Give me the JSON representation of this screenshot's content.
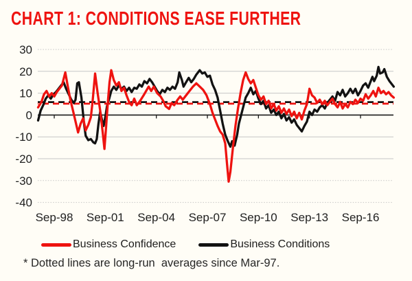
{
  "title": "CHART 1: CONDITIONS EASE FURTHER",
  "footnote": "* Dotted lines are long-run  averages since Mar-97.",
  "colors": {
    "accent_red": "#ee1310",
    "line_black": "#121212",
    "grid": "#c5c5c5",
    "zero_axis": "#1a1a1a",
    "tick_text": "#1f1f1f"
  },
  "chart_data": {
    "type": "line",
    "title": "CHART 1: CONDITIONS EASE FURTHER",
    "xlabel": "",
    "ylabel": "",
    "ylim": [
      -40,
      30
    ],
    "grid": "horizontal",
    "legend_position": "bottom",
    "y_axis": {
      "ticks": [
        30,
        20,
        10,
        0,
        -10,
        -20,
        -30,
        -40
      ],
      "dotted_ticks": [
        30,
        -30,
        -40
      ]
    },
    "x_axis": {
      "ticks": [
        {
          "label": "Sep-98",
          "year": 1998.75
        },
        {
          "label": "Sep-01",
          "year": 2001.75
        },
        {
          "label": "Sep-04",
          "year": 2004.75
        },
        {
          "label": "Sep-07",
          "year": 2007.75
        },
        {
          "label": "Sep-10",
          "year": 2010.75
        },
        {
          "label": "Sep-13",
          "year": 2013.75
        },
        {
          "label": "Sep-16",
          "year": 2016.75
        }
      ]
    },
    "avg_lines": [
      {
        "name": "Business Conditions long-run average",
        "value": 5.9,
        "color": "black",
        "dashoffset": 0
      },
      {
        "name": "Business Confidence long-run average",
        "value": 5.2,
        "color": "red",
        "dashoffset": -7
      }
    ],
    "series": [
      {
        "name": "Business Confidence",
        "color": "red",
        "points": [
          [
            1997.8,
            3.5
          ],
          [
            1998.0,
            6
          ],
          [
            1998.15,
            9.5
          ],
          [
            1998.3,
            11
          ],
          [
            1998.45,
            8.5
          ],
          [
            1998.6,
            10
          ],
          [
            1998.75,
            8.5
          ],
          [
            1998.9,
            10.5
          ],
          [
            1999.05,
            12
          ],
          [
            1999.2,
            13.5
          ],
          [
            1999.4,
            19.5
          ],
          [
            1999.55,
            13
          ],
          [
            1999.7,
            7
          ],
          [
            1999.85,
            2
          ],
          [
            2000.0,
            -3
          ],
          [
            2000.15,
            -8
          ],
          [
            2000.3,
            -4
          ],
          [
            2000.45,
            -1.5
          ],
          [
            2000.6,
            -7
          ],
          [
            2000.75,
            -4.5
          ],
          [
            2000.9,
            -1
          ],
          [
            2001.0,
            6
          ],
          [
            2001.15,
            19
          ],
          [
            2001.3,
            10
          ],
          [
            2001.45,
            2
          ],
          [
            2001.6,
            -8
          ],
          [
            2001.7,
            -15.5
          ],
          [
            2001.8,
            -5
          ],
          [
            2001.9,
            6
          ],
          [
            2002.0,
            15
          ],
          [
            2002.1,
            20.5
          ],
          [
            2002.25,
            16
          ],
          [
            2002.4,
            13.5
          ],
          [
            2002.55,
            15
          ],
          [
            2002.7,
            11
          ],
          [
            2002.85,
            12.5
          ],
          [
            2003.0,
            9
          ],
          [
            2003.15,
            6
          ],
          [
            2003.3,
            4.5
          ],
          [
            2003.45,
            7.5
          ],
          [
            2003.6,
            4.5
          ],
          [
            2003.8,
            6.5
          ],
          [
            2004.0,
            9
          ],
          [
            2004.15,
            11
          ],
          [
            2004.3,
            13
          ],
          [
            2004.45,
            11
          ],
          [
            2004.6,
            13
          ],
          [
            2004.8,
            10
          ],
          [
            2005.0,
            8.5
          ],
          [
            2005.15,
            6.5
          ],
          [
            2005.3,
            4
          ],
          [
            2005.5,
            2.8
          ],
          [
            2005.65,
            5.5
          ],
          [
            2005.8,
            4.5
          ],
          [
            2006.0,
            7
          ],
          [
            2006.15,
            8.5
          ],
          [
            2006.3,
            7
          ],
          [
            2006.5,
            9
          ],
          [
            2006.7,
            11
          ],
          [
            2006.9,
            13
          ],
          [
            2007.1,
            14.5
          ],
          [
            2007.3,
            13
          ],
          [
            2007.5,
            11.5
          ],
          [
            2007.7,
            9
          ],
          [
            2007.9,
            5
          ],
          [
            2008.05,
            1
          ],
          [
            2008.2,
            -2
          ],
          [
            2008.35,
            -5
          ],
          [
            2008.5,
            -7.5
          ],
          [
            2008.65,
            -9
          ],
          [
            2008.8,
            -13
          ],
          [
            2008.9,
            -22
          ],
          [
            2009.0,
            -30.5
          ],
          [
            2009.1,
            -26
          ],
          [
            2009.25,
            -15
          ],
          [
            2009.4,
            -5
          ],
          [
            2009.55,
            3
          ],
          [
            2009.7,
            10
          ],
          [
            2009.85,
            16
          ],
          [
            2010.0,
            19.5
          ],
          [
            2010.15,
            16.5
          ],
          [
            2010.3,
            14.5
          ],
          [
            2010.45,
            16
          ],
          [
            2010.6,
            12.5
          ],
          [
            2010.75,
            9
          ],
          [
            2010.9,
            7
          ],
          [
            2011.05,
            8.5
          ],
          [
            2011.2,
            5
          ],
          [
            2011.35,
            6.5
          ],
          [
            2011.5,
            3
          ],
          [
            2011.65,
            5
          ],
          [
            2011.8,
            2
          ],
          [
            2011.95,
            4
          ],
          [
            2012.1,
            1
          ],
          [
            2012.25,
            3
          ],
          [
            2012.4,
            0.5
          ],
          [
            2012.55,
            2.5
          ],
          [
            2012.7,
            -0.5
          ],
          [
            2012.85,
            1.5
          ],
          [
            2013.0,
            -1.5
          ],
          [
            2013.15,
            1
          ],
          [
            2013.3,
            -2
          ],
          [
            2013.45,
            2
          ],
          [
            2013.6,
            5
          ],
          [
            2013.75,
            12
          ],
          [
            2013.9,
            9
          ],
          [
            2014.05,
            8
          ],
          [
            2014.2,
            5.5
          ],
          [
            2014.35,
            7
          ],
          [
            2014.5,
            5
          ],
          [
            2014.65,
            6.5
          ],
          [
            2014.8,
            4.5
          ],
          [
            2014.95,
            6
          ],
          [
            2015.1,
            7.5
          ],
          [
            2015.25,
            5
          ],
          [
            2015.4,
            3.5
          ],
          [
            2015.55,
            6
          ],
          [
            2015.7,
            3
          ],
          [
            2015.85,
            5
          ],
          [
            2016.0,
            3.5
          ],
          [
            2016.15,
            6
          ],
          [
            2016.3,
            5
          ],
          [
            2016.45,
            7
          ],
          [
            2016.6,
            5.5
          ],
          [
            2016.75,
            7.5
          ],
          [
            2016.9,
            6.5
          ],
          [
            2017.05,
            9.5
          ],
          [
            2017.2,
            7.5
          ],
          [
            2017.35,
            9
          ],
          [
            2017.5,
            11
          ],
          [
            2017.65,
            8.5
          ],
          [
            2017.8,
            12.5
          ],
          [
            2017.95,
            10
          ],
          [
            2018.1,
            11
          ],
          [
            2018.25,
            9.5
          ],
          [
            2018.4,
            10.5
          ],
          [
            2018.55,
            9
          ],
          [
            2018.7,
            8
          ]
        ]
      },
      {
        "name": "Business Conditions",
        "color": "black",
        "points": [
          [
            1997.8,
            -2.5
          ],
          [
            1997.95,
            2
          ],
          [
            1998.1,
            4.5
          ],
          [
            1998.25,
            7.5
          ],
          [
            1998.4,
            9
          ],
          [
            1998.55,
            7.5
          ],
          [
            1998.7,
            9.5
          ],
          [
            1998.85,
            10.5
          ],
          [
            1999.0,
            12
          ],
          [
            1999.15,
            13.5
          ],
          [
            1999.3,
            15
          ],
          [
            1999.45,
            12
          ],
          [
            1999.6,
            9.5
          ],
          [
            1999.75,
            7
          ],
          [
            1999.9,
            5.5
          ],
          [
            2000.0,
            7
          ],
          [
            2000.1,
            14.5
          ],
          [
            2000.2,
            15
          ],
          [
            2000.35,
            8
          ],
          [
            2000.5,
            -4
          ],
          [
            2000.6,
            -9.5
          ],
          [
            2000.75,
            -11.5
          ],
          [
            2000.9,
            -11
          ],
          [
            2001.05,
            -12.5
          ],
          [
            2001.15,
            -13
          ],
          [
            2001.25,
            -11
          ],
          [
            2001.35,
            -4
          ],
          [
            2001.45,
            1.5
          ],
          [
            2001.55,
            -2
          ],
          [
            2001.65,
            -5
          ],
          [
            2001.75,
            -1
          ],
          [
            2001.85,
            4
          ],
          [
            2002.0,
            8
          ],
          [
            2002.1,
            11
          ],
          [
            2002.25,
            13
          ],
          [
            2002.4,
            11.5
          ],
          [
            2002.55,
            13.5
          ],
          [
            2002.7,
            12
          ],
          [
            2002.85,
            13
          ],
          [
            2003.0,
            11
          ],
          [
            2003.15,
            12.5
          ],
          [
            2003.3,
            10.5
          ],
          [
            2003.45,
            12.5
          ],
          [
            2003.6,
            12
          ],
          [
            2003.75,
            14
          ],
          [
            2003.9,
            13
          ],
          [
            2004.05,
            15.5
          ],
          [
            2004.2,
            14.5
          ],
          [
            2004.35,
            16.5
          ],
          [
            2004.5,
            15
          ],
          [
            2004.65,
            13
          ],
          [
            2004.8,
            11
          ],
          [
            2004.95,
            9.5
          ],
          [
            2005.1,
            11.5
          ],
          [
            2005.25,
            10.5
          ],
          [
            2005.4,
            12.5
          ],
          [
            2005.55,
            11.5
          ],
          [
            2005.7,
            13
          ],
          [
            2005.85,
            12
          ],
          [
            2006.0,
            15
          ],
          [
            2006.1,
            19.5
          ],
          [
            2006.25,
            16
          ],
          [
            2006.35,
            13
          ],
          [
            2006.5,
            15
          ],
          [
            2006.65,
            17
          ],
          [
            2006.8,
            15
          ],
          [
            2006.95,
            16.5
          ],
          [
            2007.1,
            18.5
          ],
          [
            2007.3,
            20.5
          ],
          [
            2007.45,
            19
          ],
          [
            2007.6,
            19.5
          ],
          [
            2007.75,
            17.5
          ],
          [
            2007.9,
            18
          ],
          [
            2008.05,
            14
          ],
          [
            2008.2,
            11.5
          ],
          [
            2008.35,
            8
          ],
          [
            2008.5,
            2
          ],
          [
            2008.65,
            -4
          ],
          [
            2008.8,
            -9
          ],
          [
            2008.95,
            -12
          ],
          [
            2009.1,
            -14.5
          ],
          [
            2009.2,
            -12
          ],
          [
            2009.35,
            -14
          ],
          [
            2009.5,
            -9
          ],
          [
            2009.6,
            -4
          ],
          [
            2009.75,
            0.5
          ],
          [
            2009.9,
            5
          ],
          [
            2010.0,
            8
          ],
          [
            2010.15,
            10
          ],
          [
            2010.3,
            12.5
          ],
          [
            2010.45,
            9.5
          ],
          [
            2010.6,
            11
          ],
          [
            2010.75,
            7.5
          ],
          [
            2010.9,
            5
          ],
          [
            2011.05,
            6.5
          ],
          [
            2011.2,
            3
          ],
          [
            2011.35,
            4.5
          ],
          [
            2011.5,
            1
          ],
          [
            2011.65,
            2.5
          ],
          [
            2011.8,
            0
          ],
          [
            2011.95,
            1.5
          ],
          [
            2012.1,
            -1.5
          ],
          [
            2012.25,
            0.5
          ],
          [
            2012.4,
            -2.5
          ],
          [
            2012.55,
            -1
          ],
          [
            2012.7,
            -3.5
          ],
          [
            2012.85,
            -2
          ],
          [
            2013.0,
            -4.5
          ],
          [
            2013.15,
            -6
          ],
          [
            2013.3,
            -7.5
          ],
          [
            2013.45,
            -5
          ],
          [
            2013.6,
            -3
          ],
          [
            2013.75,
            1.5
          ],
          [
            2013.9,
            0
          ],
          [
            2014.05,
            2.5
          ],
          [
            2014.2,
            1.5
          ],
          [
            2014.35,
            3.5
          ],
          [
            2014.5,
            4.5
          ],
          [
            2014.65,
            3
          ],
          [
            2014.8,
            5.5
          ],
          [
            2014.95,
            7
          ],
          [
            2015.1,
            8.5
          ],
          [
            2015.25,
            6.5
          ],
          [
            2015.4,
            10.5
          ],
          [
            2015.55,
            9
          ],
          [
            2015.7,
            11.5
          ],
          [
            2015.85,
            8.5
          ],
          [
            2016.0,
            10
          ],
          [
            2016.15,
            12
          ],
          [
            2016.3,
            10
          ],
          [
            2016.45,
            12
          ],
          [
            2016.6,
            9
          ],
          [
            2016.75,
            11
          ],
          [
            2016.9,
            13.5
          ],
          [
            2017.05,
            14.5
          ],
          [
            2017.2,
            12.5
          ],
          [
            2017.35,
            15.5
          ],
          [
            2017.45,
            17.5
          ],
          [
            2017.55,
            15.5
          ],
          [
            2017.7,
            18
          ],
          [
            2017.8,
            22
          ],
          [
            2017.9,
            19
          ],
          [
            2018.05,
            19.5
          ],
          [
            2018.15,
            21
          ],
          [
            2018.3,
            17.5
          ],
          [
            2018.45,
            15.5
          ],
          [
            2018.6,
            14
          ],
          [
            2018.7,
            13
          ]
        ]
      }
    ]
  }
}
